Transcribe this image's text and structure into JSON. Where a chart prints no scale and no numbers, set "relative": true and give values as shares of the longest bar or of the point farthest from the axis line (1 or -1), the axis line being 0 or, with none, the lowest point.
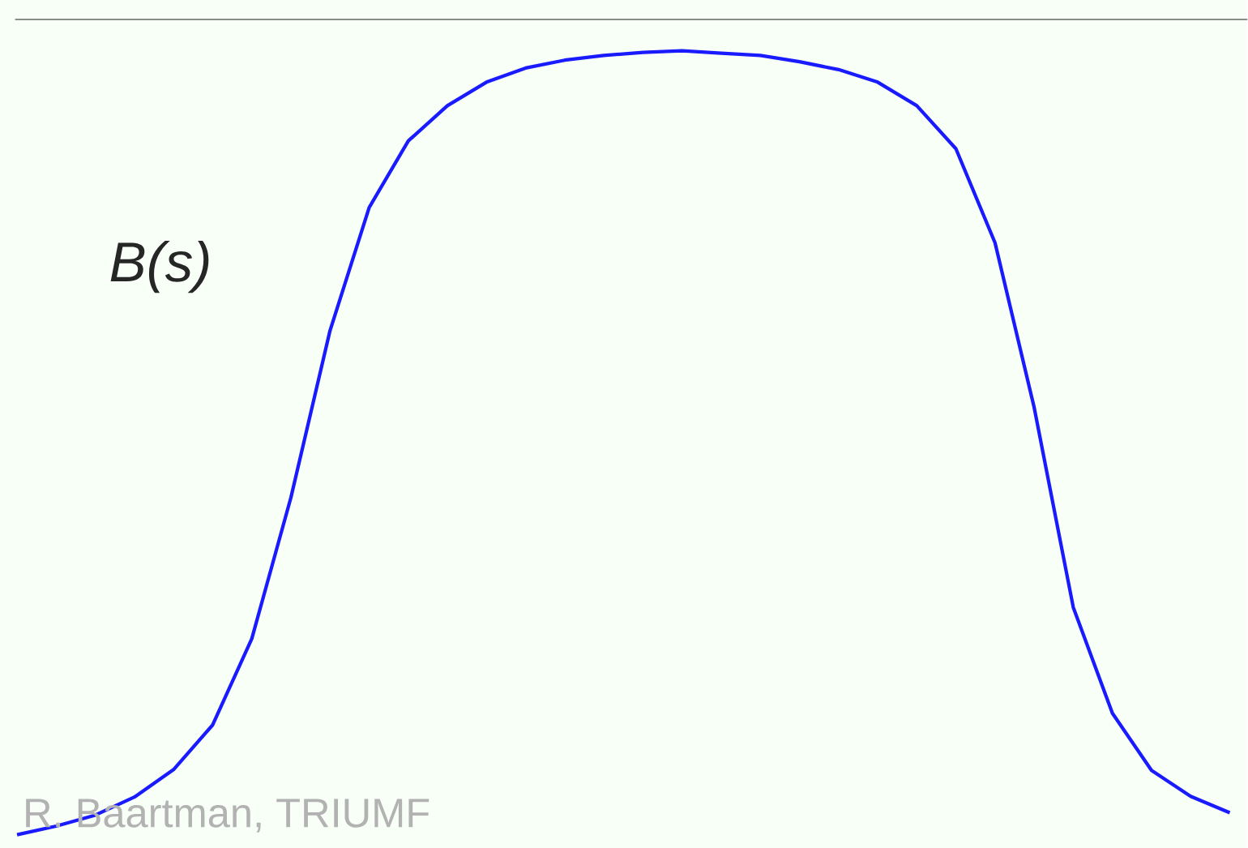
{
  "chart_data": {
    "type": "line",
    "relative": true,
    "categories": [
      null,
      null,
      null,
      null,
      null,
      null,
      null,
      null,
      null,
      null,
      null,
      null,
      null,
      null,
      null,
      null,
      null,
      null,
      null,
      null,
      null,
      null,
      null,
      null,
      null,
      null,
      null,
      null,
      null,
      null,
      null,
      null
    ],
    "series": [
      {
        "name": "B(s)",
        "color": "#1a1aff",
        "values": [
          0,
          0.011,
          0.025,
          0.048,
          0.083,
          0.14,
          0.25,
          0.43,
          0.643,
          0.8,
          0.885,
          0.93,
          0.96,
          0.978,
          0.988,
          0.994,
          0.998,
          1.0,
          0.997,
          0.994,
          0.986,
          0.976,
          0.96,
          0.93,
          0.875,
          0.755,
          0.545,
          0.29,
          0.155,
          0.082,
          0.049,
          0.028
        ]
      }
    ],
    "annotations": [
      "R. Baartman, TRIUMF"
    ]
  }
}
